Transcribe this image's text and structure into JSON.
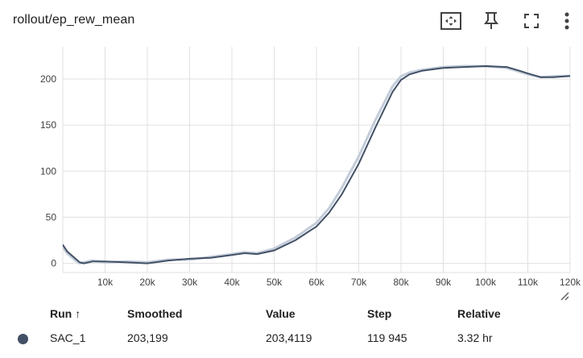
{
  "card": {
    "title": "rollout/ep_rew_mean"
  },
  "toolbar": {
    "icons": [
      "fit-to-data-icon",
      "pin-icon",
      "fullscreen-icon",
      "more-vert-icon"
    ]
  },
  "colors": {
    "smoothed_line": "#425066",
    "raw_line": "#c3ccd9",
    "grid": "#e0e0e0",
    "run_dot": "#425066"
  },
  "chart_data": {
    "type": "line",
    "title": "rollout/ep_rew_mean",
    "xlabel": "",
    "ylabel": "",
    "xlim": [
      0,
      120000
    ],
    "ylim": [
      -10,
      235
    ],
    "y_ticks": [
      0,
      50,
      100,
      150,
      200
    ],
    "y_tick_labels": [
      "0",
      "50",
      "100",
      "150",
      "200"
    ],
    "x_ticks": [
      10000,
      20000,
      30000,
      40000,
      50000,
      60000,
      70000,
      80000,
      90000,
      100000,
      110000,
      120000
    ],
    "x_tick_labels": [
      "10k",
      "20k",
      "30k",
      "40k",
      "50k",
      "60k",
      "70k",
      "80k",
      "90k",
      "100k",
      "110k",
      "120k"
    ],
    "grid": true,
    "legend": "none",
    "series": [
      {
        "name": "SAC_1",
        "kind": "smoothed",
        "x": [
          0,
          1000,
          2000,
          3000,
          4000,
          5000,
          7000,
          10000,
          15000,
          20000,
          25000,
          30000,
          35000,
          40000,
          43000,
          46000,
          50000,
          55000,
          60000,
          63000,
          66000,
          70000,
          74000,
          78000,
          80000,
          82000,
          85000,
          90000,
          95000,
          100000,
          105000,
          108000,
          110000,
          113000,
          116000,
          119945
        ],
        "y": [
          20,
          13,
          9,
          5,
          1,
          0,
          2,
          2,
          1,
          0,
          3,
          5,
          6,
          9,
          11,
          10,
          14,
          25,
          40,
          55,
          75,
          108,
          148,
          186,
          199,
          205,
          209,
          212,
          213,
          214,
          213,
          209,
          206,
          202,
          202,
          203.2
        ]
      },
      {
        "name": "SAC_1",
        "kind": "raw",
        "x": [
          0,
          1000,
          2000,
          3000,
          4000,
          5000,
          7000,
          10000,
          15000,
          20000,
          25000,
          30000,
          35000,
          40000,
          43000,
          46000,
          50000,
          55000,
          60000,
          63000,
          66000,
          70000,
          74000,
          78000,
          80000,
          82000,
          85000,
          90000,
          95000,
          100000,
          105000,
          108000,
          110000,
          113000,
          116000,
          119945
        ],
        "y": [
          18,
          11,
          7,
          3,
          0,
          1,
          3,
          1,
          2,
          1,
          4,
          4,
          7,
          10,
          12,
          11,
          16,
          28,
          44,
          60,
          82,
          116,
          156,
          192,
          203,
          207,
          210,
          213,
          214,
          214,
          212,
          208,
          205,
          202,
          203,
          203.4
        ]
      }
    ]
  },
  "table": {
    "headers": {
      "run": "Run",
      "sort_arrow": "↑",
      "smoothed": "Smoothed",
      "value": "Value",
      "step": "Step",
      "relative": "Relative"
    },
    "rows": [
      {
        "run": "SAC_1",
        "smoothed": "203,199",
        "value": "203,4119",
        "step": "119 945",
        "relative": "3.32 hr"
      }
    ]
  }
}
